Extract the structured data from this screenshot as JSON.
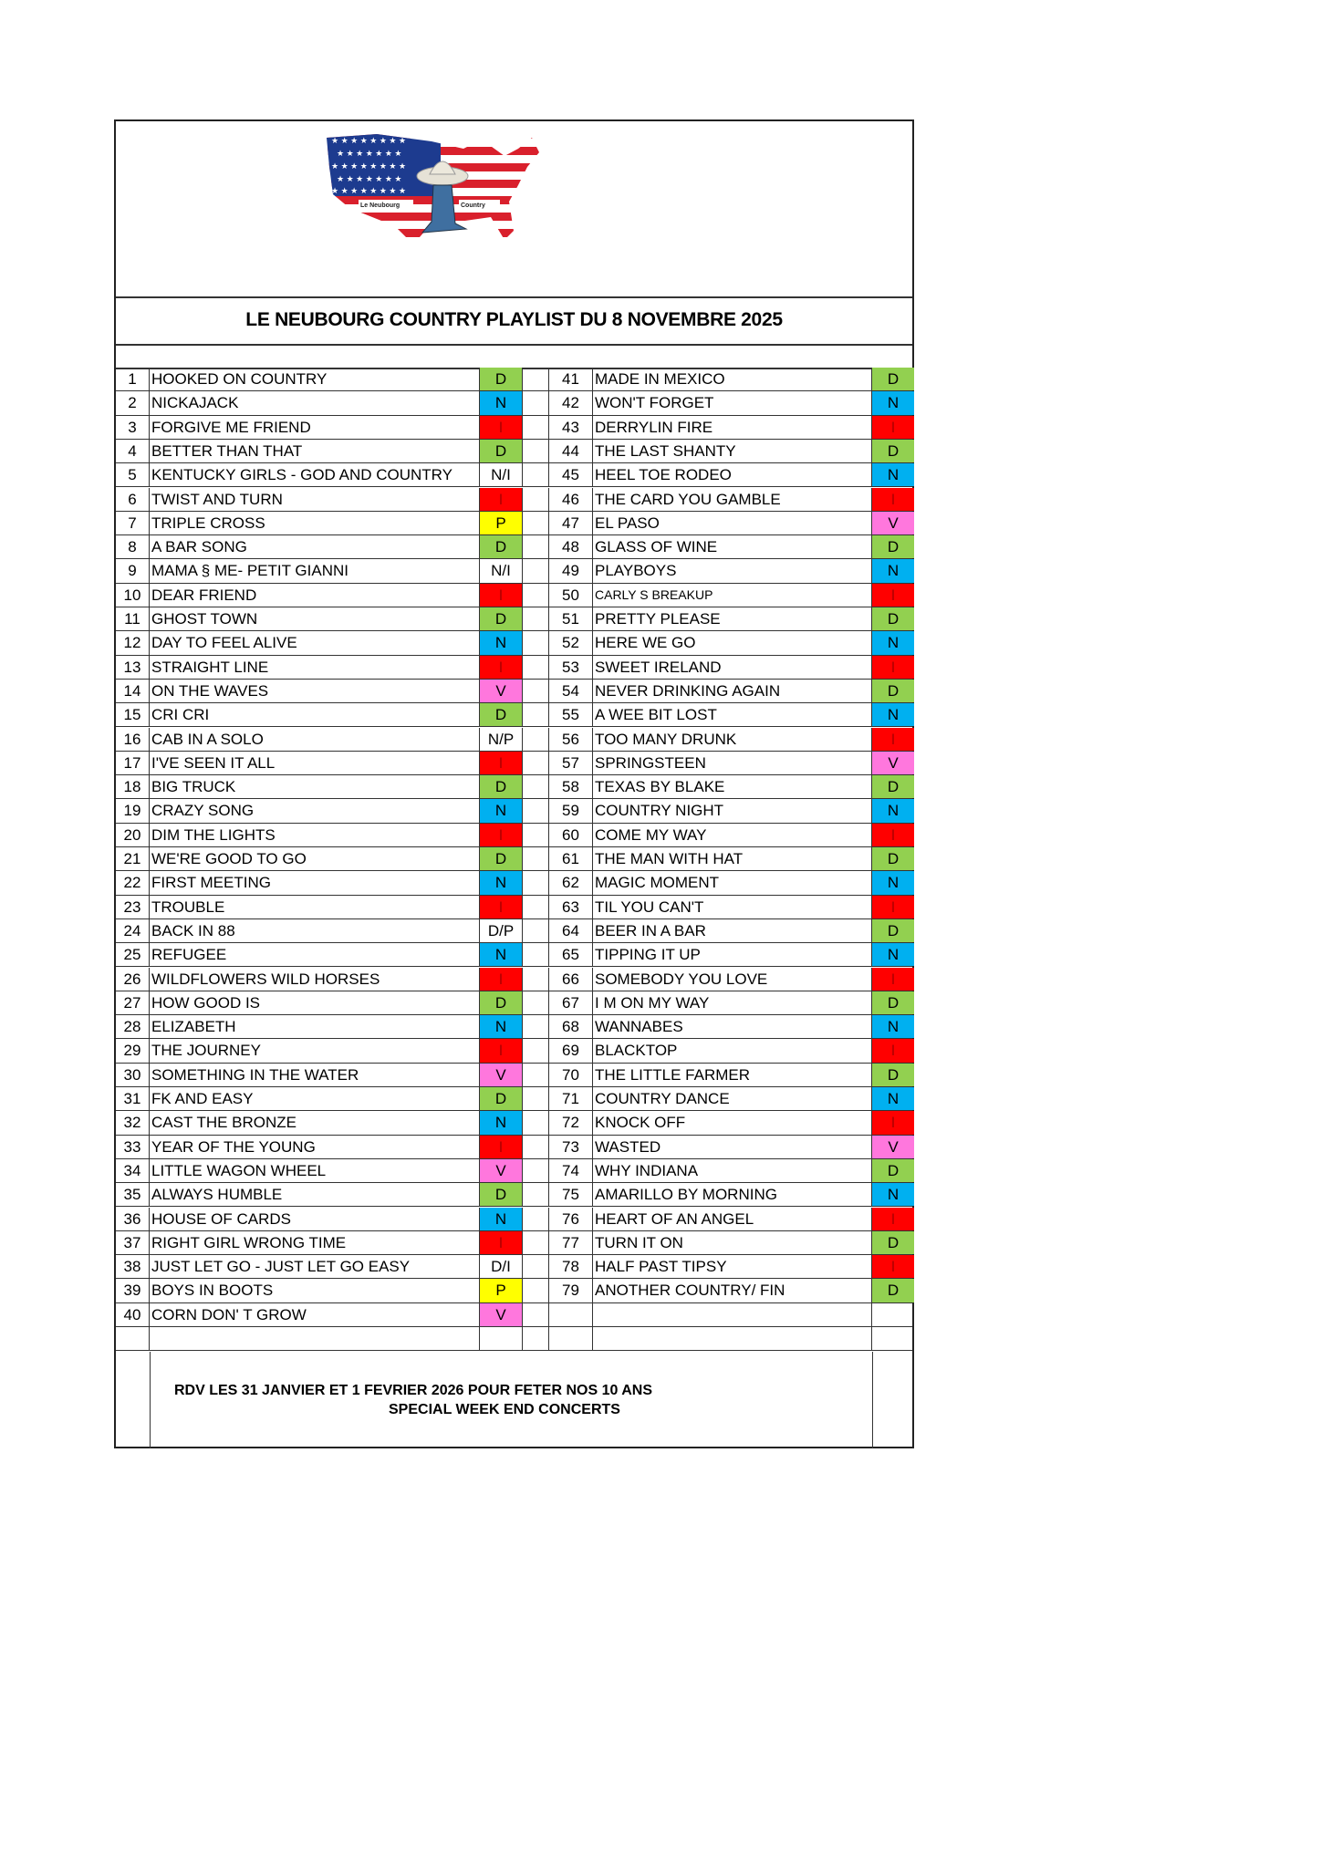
{
  "logo": {
    "text_left": "Le Neubourg",
    "text_right": "Country"
  },
  "title": "LE NEUBOURG COUNTRY PLAYLIST DU 8 NOVEMBRE 2025",
  "code_colors": {
    "D": "#92d050",
    "N": "#00b0f0",
    "I": "#ff0000",
    "P": "#ffff00",
    "V": "#ff77dd"
  },
  "left": [
    {
      "n": "1",
      "t": "HOOKED ON COUNTRY",
      "c": "D"
    },
    {
      "n": "2",
      "t": "NICKAJACK",
      "c": "N"
    },
    {
      "n": "3",
      "t": "FORGIVE ME FRIEND",
      "c": "I"
    },
    {
      "n": "4",
      "t": "BETTER THAN THAT",
      "c": "D"
    },
    {
      "n": "5",
      "t": "KENTUCKY GIRLS - GOD AND COUNTRY",
      "c": "N/I"
    },
    {
      "n": "6",
      "t": "TWIST AND TURN",
      "c": "I"
    },
    {
      "n": "7",
      "t": "TRIPLE CROSS",
      "c": "P"
    },
    {
      "n": "8",
      "t": "A BAR SONG",
      "c": "D"
    },
    {
      "n": "9",
      "t": "MAMA § ME- PETIT GIANNI",
      "c": "N/I"
    },
    {
      "n": "10",
      "t": "DEAR FRIEND",
      "c": "I"
    },
    {
      "n": "11",
      "t": "GHOST TOWN",
      "c": "D"
    },
    {
      "n": "12",
      "t": "DAY TO FEEL ALIVE",
      "c": "N"
    },
    {
      "n": "13",
      "t": "STRAIGHT LINE",
      "c": "I"
    },
    {
      "n": "14",
      "t": "ON THE WAVES",
      "c": "V"
    },
    {
      "n": "15",
      "t": "CRI CRI",
      "c": "D"
    },
    {
      "n": "16",
      "t": "CAB IN A SOLO",
      "c": "N/P"
    },
    {
      "n": "17",
      "t": "I'VE SEEN IT ALL",
      "c": "I"
    },
    {
      "n": "18",
      "t": "BIG TRUCK",
      "c": "D"
    },
    {
      "n": "19",
      "t": "CRAZY SONG",
      "c": "N"
    },
    {
      "n": "20",
      "t": "DIM THE LIGHTS",
      "c": "I"
    },
    {
      "n": "21",
      "t": "WE'RE GOOD TO GO",
      "c": "D"
    },
    {
      "n": "22",
      "t": "FIRST MEETING",
      "c": "N"
    },
    {
      "n": "23",
      "t": "TROUBLE",
      "c": "I"
    },
    {
      "n": "24",
      "t": "BACK IN 88",
      "c": "D/P"
    },
    {
      "n": "25",
      "t": "REFUGEE",
      "c": "N"
    },
    {
      "n": "26",
      "t": "WILDFLOWERS WILD HORSES",
      "c": "I"
    },
    {
      "n": "27",
      "t": "HOW GOOD IS",
      "c": "D"
    },
    {
      "n": "28",
      "t": "ELIZABETH",
      "c": "N"
    },
    {
      "n": "29",
      "t": "THE JOURNEY",
      "c": "I"
    },
    {
      "n": "30",
      "t": "SOMETHING IN THE WATER",
      "c": "V"
    },
    {
      "n": "31",
      "t": "FK AND EASY",
      "c": "D"
    },
    {
      "n": "32",
      "t": "CAST THE BRONZE",
      "c": "N"
    },
    {
      "n": "33",
      "t": "YEAR OF THE YOUNG",
      "c": "I"
    },
    {
      "n": "34",
      "t": "LITTLE WAGON WHEEL",
      "c": "V"
    },
    {
      "n": "35",
      "t": "ALWAYS HUMBLE",
      "c": "D"
    },
    {
      "n": "36",
      "t": "HOUSE OF CARDS",
      "c": "N"
    },
    {
      "n": "37",
      "t": "RIGHT GIRL WRONG TIME",
      "c": "I"
    },
    {
      "n": "38",
      "t": "JUST LET GO - JUST LET GO  EASY",
      "c": "D/I"
    },
    {
      "n": "39",
      "t": "BOYS IN BOOTS",
      "c": "P"
    },
    {
      "n": "40",
      "t": "CORN   DON' T GROW",
      "c": "V"
    }
  ],
  "right": [
    {
      "n": "41",
      "t": "MADE IN  MEXICO",
      "c": "D"
    },
    {
      "n": "42",
      "t": "WON'T FORGET",
      "c": "N"
    },
    {
      "n": "43",
      "t": "DERRYLIN FIRE",
      "c": "I"
    },
    {
      "n": "44",
      "t": "THE LAST SHANTY",
      "c": "D"
    },
    {
      "n": "45",
      "t": "HEEL TOE RODEO",
      "c": "N"
    },
    {
      "n": "46",
      "t": "THE CARD YOU GAMBLE",
      "c": "I"
    },
    {
      "n": "47",
      "t": "EL PASO",
      "c": "V"
    },
    {
      "n": "48",
      "t": "GLASS OF WINE",
      "c": "D"
    },
    {
      "n": "49",
      "t": "PLAYBOYS",
      "c": "N"
    },
    {
      "n": "50",
      "t": "CARLY S BREAKUP",
      "c": "I",
      "small": true
    },
    {
      "n": "51",
      "t": "PRETTY PLEASE",
      "c": "D"
    },
    {
      "n": "52",
      "t": "HERE WE GO",
      "c": "N"
    },
    {
      "n": "53",
      "t": "SWEET IRELAND",
      "c": "I"
    },
    {
      "n": "54",
      "t": "NEVER DRINKING AGAIN",
      "c": "D"
    },
    {
      "n": "55",
      "t": "A WEE BIT LOST",
      "c": "N"
    },
    {
      "n": "56",
      "t": "TOO MANY DRUNK",
      "c": "I"
    },
    {
      "n": "57",
      "t": "SPRINGSTEEN",
      "c": "V"
    },
    {
      "n": "58",
      "t": "TEXAS BY BLAKE",
      "c": "D"
    },
    {
      "n": "59",
      "t": "COUNTRY NIGHT",
      "c": "N"
    },
    {
      "n": "60",
      "t": "COME MY WAY",
      "c": "I"
    },
    {
      "n": "61",
      "t": "THE MAN WITH HAT",
      "c": "D"
    },
    {
      "n": "62",
      "t": "MAGIC MOMENT",
      "c": "N"
    },
    {
      "n": "63",
      "t": "TIL YOU CAN'T",
      "c": "I"
    },
    {
      "n": "64",
      "t": "BEER IN A BAR",
      "c": "D"
    },
    {
      "n": "65",
      "t": "TIPPING IT UP",
      "c": "N"
    },
    {
      "n": "66",
      "t": "SOMEBODY YOU LOVE",
      "c": "I"
    },
    {
      "n": "67",
      "t": "I M ON MY WAY",
      "c": "D"
    },
    {
      "n": "68",
      "t": "WANNABES",
      "c": "N"
    },
    {
      "n": "69",
      "t": "BLACKTOP",
      "c": "I"
    },
    {
      "n": "70",
      "t": "THE LITTLE FARMER",
      "c": "D"
    },
    {
      "n": "71",
      "t": "COUNTRY DANCE",
      "c": "N"
    },
    {
      "n": "72",
      "t": "KNOCK OFF",
      "c": "I"
    },
    {
      "n": "73",
      "t": "WASTED",
      "c": "V"
    },
    {
      "n": "74",
      "t": "WHY INDIANA",
      "c": "D"
    },
    {
      "n": "75",
      "t": "AMARILLO BY MORNING",
      "c": "N"
    },
    {
      "n": "76",
      "t": "HEART OF AN ANGEL",
      "c": "I"
    },
    {
      "n": "77",
      "t": "TURN IT ON",
      "c": "D"
    },
    {
      "n": "78",
      "t": "HALF PAST TIPSY",
      "c": "I"
    },
    {
      "n": "79",
      "t": "ANOTHER COUNTRY/ FIN",
      "c": "D"
    }
  ],
  "footer": {
    "line1": "RDV LES 31 JANVIER ET 1 FEVRIER 2026 POUR FETER NOS 10 ANS",
    "line2": "SPECIAL WEEK END  CONCERTS"
  }
}
